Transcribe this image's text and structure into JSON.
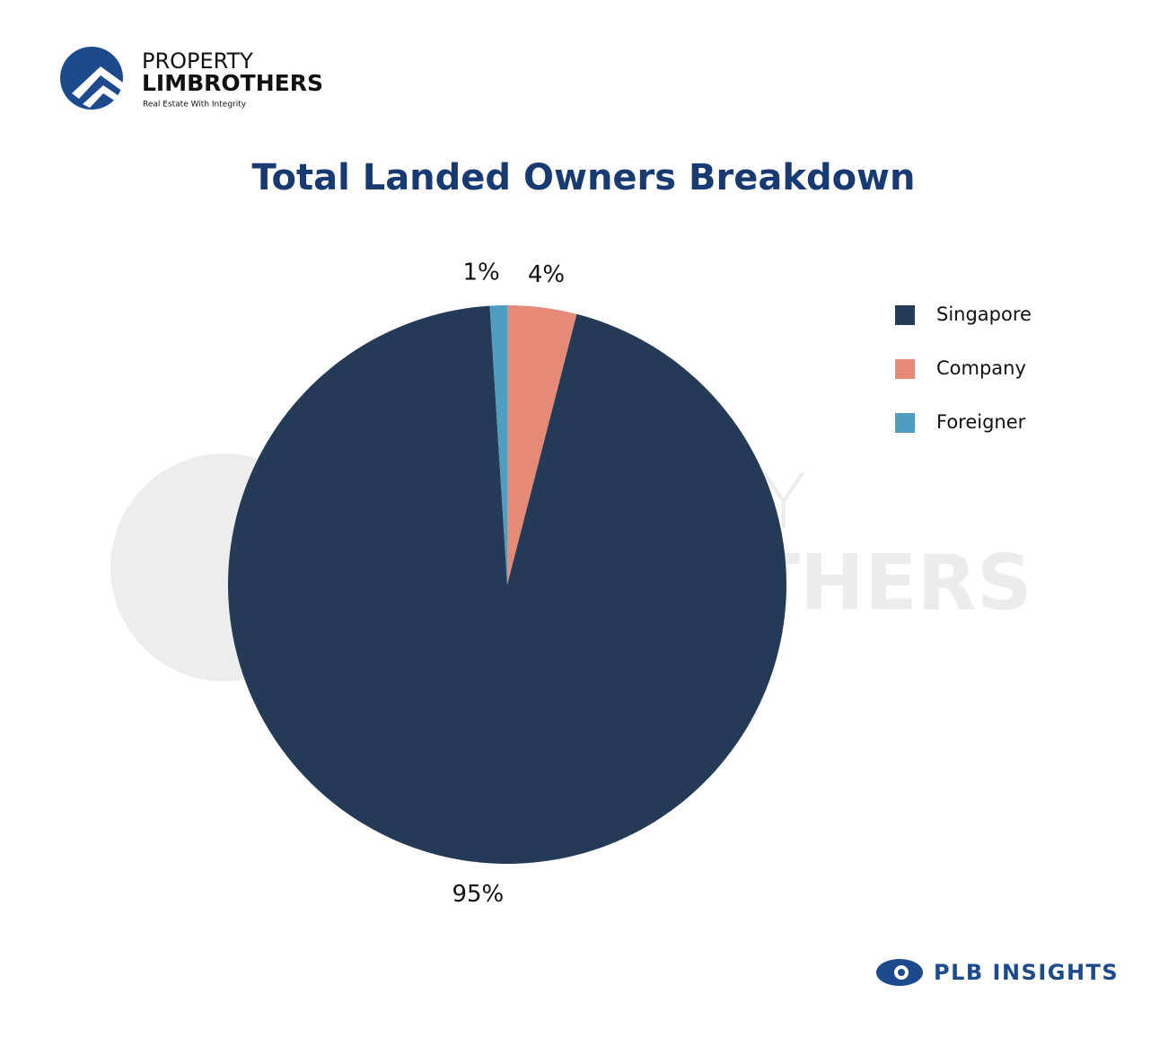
{
  "chart_data": {
    "type": "pie",
    "title": "Total Landed Owners Breakdown",
    "series": [
      {
        "name": "Singapore",
        "color": "#253a57",
        "values": [
          95
        ],
        "value_labels": [
          "95%"
        ]
      },
      {
        "name": "Company",
        "color": "#e48a77",
        "values": [
          4
        ],
        "value_labels": [
          "4%"
        ]
      },
      {
        "name": "Foreigner",
        "color": "#4f9dbf",
        "values": [
          1
        ],
        "value_labels": [
          "1%"
        ]
      }
    ],
    "legend": "right"
  },
  "branding": {
    "line1": "PROPERTY",
    "line2": "LIMBROTHERS",
    "tagline": "Real Estate With Integrity",
    "footer": "PLB INSIGHTS"
  }
}
